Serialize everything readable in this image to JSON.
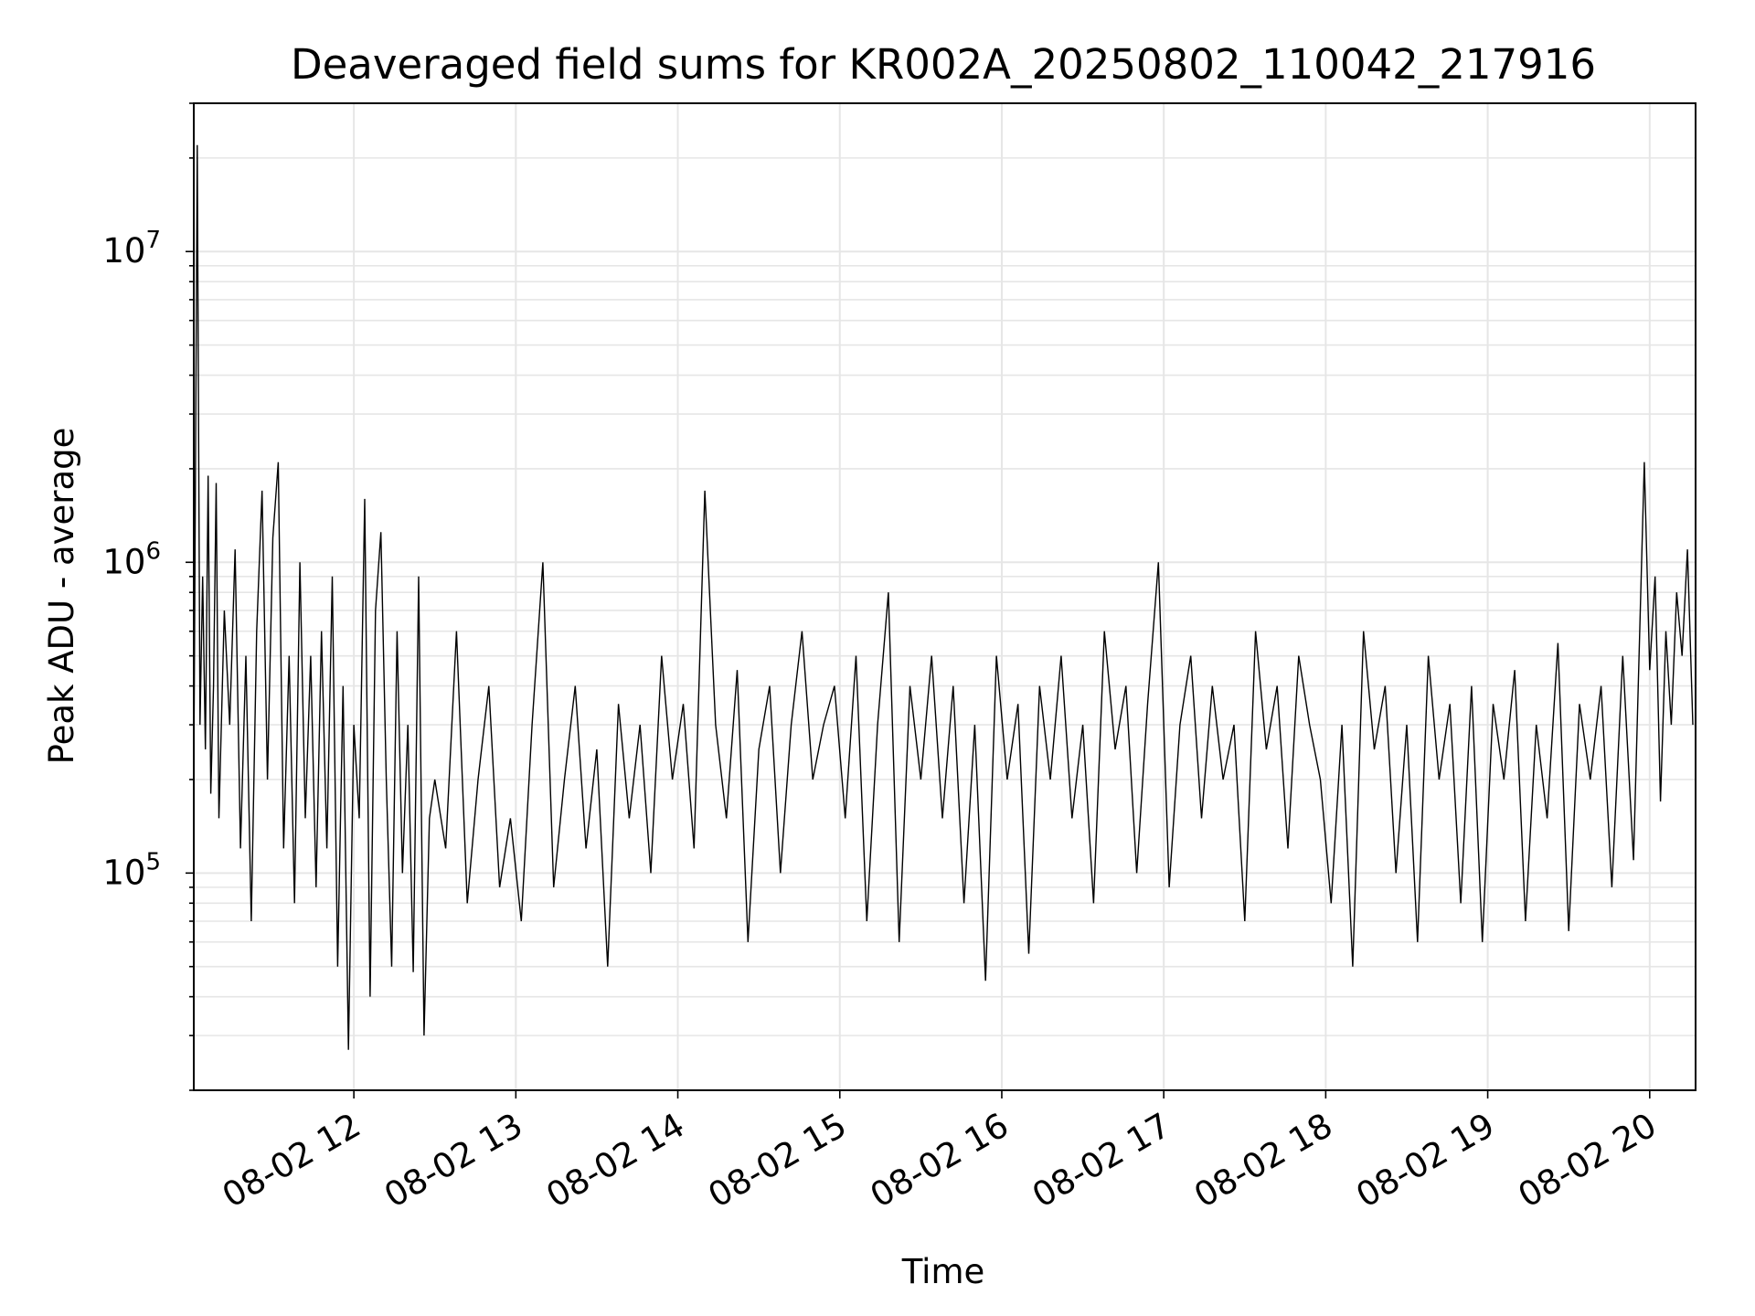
{
  "chart_data": {
    "type": "line",
    "title": "Deaveraged field sums for KR002A_20250802_110042_217916",
    "xlabel": "Time",
    "ylabel": "Peak ADU - average",
    "x_scale": "time",
    "y_scale": "log",
    "xlim": [
      "2025-08-02T11:00:42",
      "2025-08-02T20:17:00"
    ],
    "ylim": [
      20000,
      30000000
    ],
    "grid": true,
    "line_color": "#000000",
    "x_ticks": [
      {
        "value": "2025-08-02T12:00:00",
        "label": "08-02 12"
      },
      {
        "value": "2025-08-02T13:00:00",
        "label": "08-02 13"
      },
      {
        "value": "2025-08-02T14:00:00",
        "label": "08-02 14"
      },
      {
        "value": "2025-08-02T15:00:00",
        "label": "08-02 15"
      },
      {
        "value": "2025-08-02T16:00:00",
        "label": "08-02 16"
      },
      {
        "value": "2025-08-02T17:00:00",
        "label": "08-02 17"
      },
      {
        "value": "2025-08-02T18:00:00",
        "label": "08-02 18"
      },
      {
        "value": "2025-08-02T19:00:00",
        "label": "08-02 19"
      },
      {
        "value": "2025-08-02T20:00:00",
        "label": "08-02 20"
      }
    ],
    "y_ticks": [
      {
        "value": 100000,
        "base": "10",
        "exp": "5"
      },
      {
        "value": 1000000,
        "base": "10",
        "exp": "6"
      },
      {
        "value": 10000000,
        "base": "10",
        "exp": "7"
      }
    ],
    "series": [
      {
        "x": [
          "2025-08-02T11:00:42",
          "2025-08-02T11:02:00",
          "2025-08-02T11:03:00",
          "2025-08-02T11:04:00",
          "2025-08-02T11:05:00",
          "2025-08-02T11:06:00",
          "2025-08-02T11:07:00",
          "2025-08-02T11:08:00",
          "2025-08-02T11:09:00",
          "2025-08-02T11:10:00",
          "2025-08-02T11:12:00",
          "2025-08-02T11:14:00",
          "2025-08-02T11:16:00",
          "2025-08-02T11:18:00",
          "2025-08-02T11:20:00",
          "2025-08-02T11:22:00",
          "2025-08-02T11:24:00",
          "2025-08-02T11:26:00",
          "2025-08-02T11:28:00",
          "2025-08-02T11:30:00",
          "2025-08-02T11:32:00",
          "2025-08-02T11:34:00",
          "2025-08-02T11:36:00",
          "2025-08-02T11:38:00",
          "2025-08-02T11:40:00",
          "2025-08-02T11:42:00",
          "2025-08-02T11:44:00",
          "2025-08-02T11:46:00",
          "2025-08-02T11:48:00",
          "2025-08-02T11:50:00",
          "2025-08-02T11:52:00",
          "2025-08-02T11:54:00",
          "2025-08-02T11:56:00",
          "2025-08-02T11:58:00",
          "2025-08-02T12:00:00",
          "2025-08-02T12:02:00",
          "2025-08-02T12:04:00",
          "2025-08-02T12:06:00",
          "2025-08-02T12:08:00",
          "2025-08-02T12:10:00",
          "2025-08-02T12:12:00",
          "2025-08-02T12:14:00",
          "2025-08-02T12:16:00",
          "2025-08-02T12:18:00",
          "2025-08-02T12:20:00",
          "2025-08-02T12:22:00",
          "2025-08-02T12:24:00",
          "2025-08-02T12:26:00",
          "2025-08-02T12:28:00",
          "2025-08-02T12:30:00",
          "2025-08-02T12:34:00",
          "2025-08-02T12:38:00",
          "2025-08-02T12:42:00",
          "2025-08-02T12:46:00",
          "2025-08-02T12:50:00",
          "2025-08-02T12:54:00",
          "2025-08-02T12:58:00",
          "2025-08-02T13:02:00",
          "2025-08-02T13:06:00",
          "2025-08-02T13:10:00",
          "2025-08-02T13:14:00",
          "2025-08-02T13:18:00",
          "2025-08-02T13:22:00",
          "2025-08-02T13:26:00",
          "2025-08-02T13:30:00",
          "2025-08-02T13:34:00",
          "2025-08-02T13:38:00",
          "2025-08-02T13:42:00",
          "2025-08-02T13:46:00",
          "2025-08-02T13:50:00",
          "2025-08-02T13:54:00",
          "2025-08-02T13:58:00",
          "2025-08-02T14:02:00",
          "2025-08-02T14:06:00",
          "2025-08-02T14:10:00",
          "2025-08-02T14:14:00",
          "2025-08-02T14:18:00",
          "2025-08-02T14:22:00",
          "2025-08-02T14:26:00",
          "2025-08-02T14:30:00",
          "2025-08-02T14:34:00",
          "2025-08-02T14:38:00",
          "2025-08-02T14:42:00",
          "2025-08-02T14:46:00",
          "2025-08-02T14:50:00",
          "2025-08-02T14:54:00",
          "2025-08-02T14:58:00",
          "2025-08-02T15:02:00",
          "2025-08-02T15:06:00",
          "2025-08-02T15:10:00",
          "2025-08-02T15:14:00",
          "2025-08-02T15:18:00",
          "2025-08-02T15:22:00",
          "2025-08-02T15:26:00",
          "2025-08-02T15:30:00",
          "2025-08-02T15:34:00",
          "2025-08-02T15:38:00",
          "2025-08-02T15:42:00",
          "2025-08-02T15:46:00",
          "2025-08-02T15:50:00",
          "2025-08-02T15:54:00",
          "2025-08-02T15:58:00",
          "2025-08-02T16:02:00",
          "2025-08-02T16:06:00",
          "2025-08-02T16:10:00",
          "2025-08-02T16:14:00",
          "2025-08-02T16:18:00",
          "2025-08-02T16:22:00",
          "2025-08-02T16:26:00",
          "2025-08-02T16:30:00",
          "2025-08-02T16:34:00",
          "2025-08-02T16:38:00",
          "2025-08-02T16:42:00",
          "2025-08-02T16:46:00",
          "2025-08-02T16:50:00",
          "2025-08-02T16:54:00",
          "2025-08-02T16:58:00",
          "2025-08-02T17:02:00",
          "2025-08-02T17:06:00",
          "2025-08-02T17:10:00",
          "2025-08-02T17:14:00",
          "2025-08-02T17:18:00",
          "2025-08-02T17:22:00",
          "2025-08-02T17:26:00",
          "2025-08-02T17:30:00",
          "2025-08-02T17:34:00",
          "2025-08-02T17:38:00",
          "2025-08-02T17:42:00",
          "2025-08-02T17:46:00",
          "2025-08-02T17:50:00",
          "2025-08-02T17:54:00",
          "2025-08-02T17:58:00",
          "2025-08-02T18:02:00",
          "2025-08-02T18:06:00",
          "2025-08-02T18:10:00",
          "2025-08-02T18:14:00",
          "2025-08-02T18:18:00",
          "2025-08-02T18:22:00",
          "2025-08-02T18:26:00",
          "2025-08-02T18:30:00",
          "2025-08-02T18:34:00",
          "2025-08-02T18:38:00",
          "2025-08-02T18:42:00",
          "2025-08-02T18:46:00",
          "2025-08-02T18:50:00",
          "2025-08-02T18:54:00",
          "2025-08-02T18:58:00",
          "2025-08-02T19:02:00",
          "2025-08-02T19:06:00",
          "2025-08-02T19:10:00",
          "2025-08-02T19:14:00",
          "2025-08-02T19:18:00",
          "2025-08-02T19:22:00",
          "2025-08-02T19:26:00",
          "2025-08-02T19:30:00",
          "2025-08-02T19:34:00",
          "2025-08-02T19:38:00",
          "2025-08-02T19:42:00",
          "2025-08-02T19:46:00",
          "2025-08-02T19:50:00",
          "2025-08-02T19:54:00",
          "2025-08-02T19:58:00",
          "2025-08-02T20:00:00",
          "2025-08-02T20:02:00",
          "2025-08-02T20:04:00",
          "2025-08-02T20:06:00",
          "2025-08-02T20:08:00",
          "2025-08-02T20:10:00",
          "2025-08-02T20:12:00",
          "2025-08-02T20:14:00",
          "2025-08-02T20:16:00"
        ],
        "y": [
          200000,
          22000000,
          300000,
          900000,
          250000,
          1900000,
          180000,
          400000,
          1800000,
          150000,
          700000,
          300000,
          1100000,
          120000,
          500000,
          70000,
          600000,
          1700000,
          200000,
          1200000,
          2100000,
          120000,
          500000,
          80000,
          1000000,
          150000,
          500000,
          90000,
          600000,
          120000,
          900000,
          50000,
          400000,
          27000,
          300000,
          150000,
          1600000,
          40000,
          700000,
          1250000,
          200000,
          50000,
          600000,
          100000,
          300000,
          48000,
          900000,
          30000,
          150000,
          200000,
          120000,
          600000,
          80000,
          200000,
          400000,
          90000,
          150000,
          70000,
          300000,
          1000000,
          90000,
          200000,
          400000,
          120000,
          250000,
          50000,
          350000,
          150000,
          300000,
          100000,
          500000,
          200000,
          350000,
          120000,
          1700000,
          300000,
          150000,
          450000,
          60000,
          250000,
          400000,
          100000,
          300000,
          600000,
          200000,
          300000,
          400000,
          150000,
          500000,
          70000,
          300000,
          800000,
          60000,
          400000,
          200000,
          500000,
          150000,
          400000,
          80000,
          300000,
          45000,
          500000,
          200000,
          350000,
          55000,
          400000,
          200000,
          500000,
          150000,
          300000,
          80000,
          600000,
          250000,
          400000,
          100000,
          350000,
          1000000,
          90000,
          300000,
          500000,
          150000,
          400000,
          200000,
          300000,
          70000,
          600000,
          250000,
          400000,
          120000,
          500000,
          300000,
          200000,
          80000,
          300000,
          50000,
          600000,
          250000,
          400000,
          100000,
          300000,
          60000,
          500000,
          200000,
          350000,
          80000,
          400000,
          60000,
          350000,
          200000,
          450000,
          70000,
          300000,
          150000,
          550000,
          65000,
          350000,
          200000,
          400000,
          90000,
          500000,
          110000,
          2100000,
          450000,
          900000,
          170000,
          600000,
          300000,
          800000,
          500000,
          1100000,
          300000
        ]
      }
    ]
  }
}
